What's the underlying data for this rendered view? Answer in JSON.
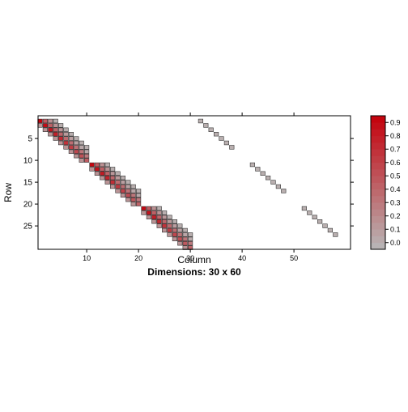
{
  "chart_data": {
    "type": "heatmap",
    "xlabel": "Column",
    "ylabel": "Row",
    "subtitle": "Dimensions: 30 x 60",
    "nrow": 30,
    "ncol": 60,
    "x_ticks": [
      10,
      20,
      30,
      40,
      50
    ],
    "y_ticks": [
      5,
      10,
      15,
      20,
      25
    ],
    "color_scale": {
      "ticks": [
        0.0,
        0.1,
        0.2,
        0.3,
        0.4,
        0.5,
        0.6,
        0.7,
        0.8,
        0.9
      ],
      "tick_labels": [
        "0.0",
        "0.1",
        "0.2",
        "0.3",
        "0.4",
        "0.5",
        "0.6",
        "0.7",
        "0.8",
        "0.9"
      ],
      "min": -0.05,
      "max": 0.95,
      "low_color": "#b8b8b8",
      "high_color": "#c4000b"
    },
    "blocks": [
      {
        "rows": [
          1,
          10
        ],
        "cols": [
          1,
          10
        ],
        "diag_value": 0.95,
        "decay": 0.28
      },
      {
        "rows": [
          11,
          20
        ],
        "cols": [
          11,
          20
        ],
        "diag_value": 0.92,
        "decay": 0.28
      },
      {
        "rows": [
          21,
          30
        ],
        "cols": [
          21,
          30
        ],
        "diag_value": 0.9,
        "decay": 0.28
      }
    ],
    "diagonal_bands": [
      {
        "rows": [
          1,
          7
        ],
        "start_col": 32,
        "value": 0.0
      },
      {
        "rows": [
          11,
          17
        ],
        "start_col": 42,
        "value": 0.0
      },
      {
        "rows": [
          21,
          27
        ],
        "start_col": 52,
        "value": 0.0
      }
    ]
  }
}
